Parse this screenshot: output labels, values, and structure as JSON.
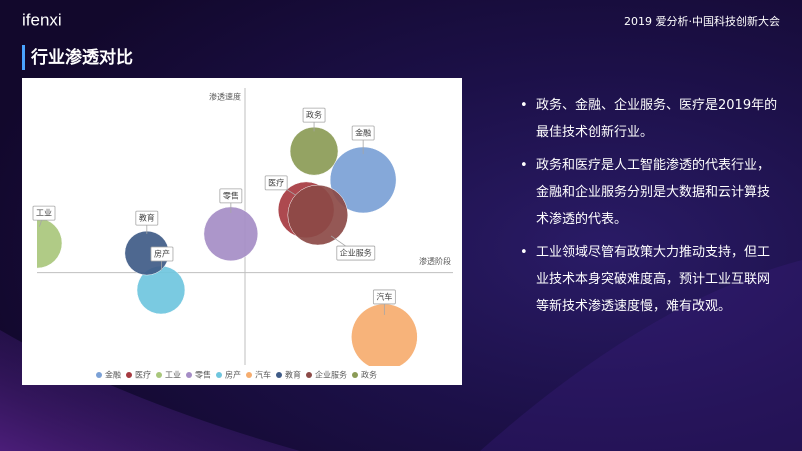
{
  "logo": "ifenxi",
  "header": "2019 爱分析·中国科技创新大会",
  "heading": "行业渗透对比",
  "bullets": [
    "政务、金融、企业服务、医疗是2019年的最佳技术创新行业。",
    "政务和医疗是人工智能渗透的代表行业，金融和企业服务分别是大数据和云计算技术渗透的代表。",
    "工业领域尽管有政策大力推动支持，但工业技术本身突破难度高，预计工业互联网等新技术渗透速度慢，难有改观。"
  ],
  "chart_data": {
    "type": "bubble",
    "x_label": "渗透阶段",
    "y_label": "渗透速度",
    "xlim": [
      -5,
      5
    ],
    "ylim": [
      -2.5,
      5
    ],
    "legend": "bottom",
    "series": [
      {
        "name": "金融",
        "color": "#7ba1d6",
        "x": [
          2.84
        ],
        "values": [
          2.51
        ],
        "sizes": [
          33
        ]
      },
      {
        "name": "医疗",
        "color": "#a63a40",
        "x": [
          1.47
        ],
        "values": [
          1.7
        ],
        "sizes": [
          28
        ]
      },
      {
        "name": "工业",
        "color": "#a9c77c",
        "x": [
          -5.0
        ],
        "values": [
          0.8
        ],
        "sizes": [
          25
        ]
      },
      {
        "name": "零售",
        "color": "#a58dc6",
        "x": [
          -0.34
        ],
        "values": [
          1.05
        ],
        "sizes": [
          27
        ]
      },
      {
        "name": "房产",
        "color": "#6fc6de",
        "x": [
          -2.02
        ],
        "values": [
          -0.47
        ],
        "sizes": [
          24
        ]
      },
      {
        "name": "汽车",
        "color": "#f6ad6f",
        "x": [
          3.35
        ],
        "values": [
          -1.74
        ],
        "sizes": [
          33
        ]
      },
      {
        "name": "教育",
        "color": "#3f5b87",
        "x": [
          -2.36
        ],
        "values": [
          0.53
        ],
        "sizes": [
          22
        ]
      },
      {
        "name": "企业服务",
        "color": "#8c4a47",
        "x": [
          1.75
        ],
        "values": [
          1.56
        ],
        "sizes": [
          30
        ]
      },
      {
        "name": "政务",
        "color": "#8b9b56",
        "x": [
          1.66
        ],
        "values": [
          3.29
        ],
        "sizes": [
          24
        ]
      }
    ]
  }
}
